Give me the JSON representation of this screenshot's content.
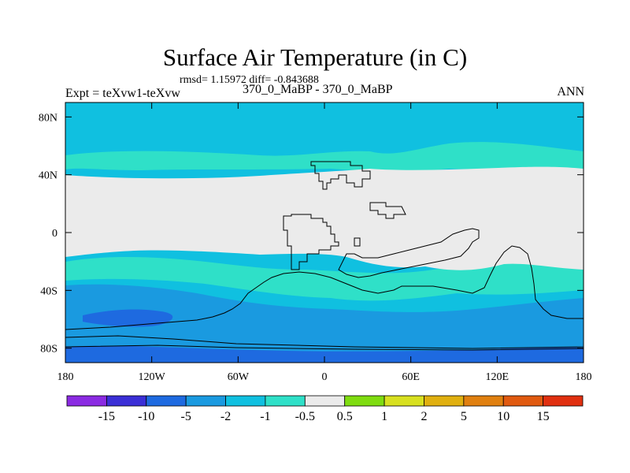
{
  "header": {
    "title": "Surface Air Temperature (in C)",
    "stats": "rmsd= 1.15972 diff= -0.843688",
    "experiment": "Expt = teXvw1-teXvw",
    "subtitle": "370_0_MaBP - 370_0_MaBP",
    "season": "ANN"
  },
  "axes": {
    "x_ticks": [
      "180",
      "120W",
      "60W",
      "0",
      "60E",
      "120E",
      "180"
    ],
    "y_ticks": [
      "80N",
      "40N",
      "0",
      "40S",
      "80S"
    ],
    "lon_range": [
      -180,
      180
    ],
    "lat_range": [
      -90,
      90
    ]
  },
  "colorbar": {
    "colors": [
      "#8b2be2",
      "#3b2fd6",
      "#1e6ae0",
      "#1a9ae0",
      "#10c0e0",
      "#2fe0c8",
      "#ebebeb",
      "#7fdc10",
      "#d8e020",
      "#e0b010",
      "#e08010",
      "#e05a10",
      "#e03010"
    ],
    "labels": [
      "-15",
      "-10",
      "-5",
      "-2",
      "-1",
      "-0.5",
      "0.5",
      "1",
      "2",
      "5",
      "10",
      "15"
    ]
  },
  "colors": {
    "neutral": "#ebebeb",
    "light_cyan": "#10c0e0",
    "teal": "#2fe0c8",
    "blue": "#1a9ae0",
    "dark_blue": "#1e6ae0",
    "coastline": "#000000"
  }
}
